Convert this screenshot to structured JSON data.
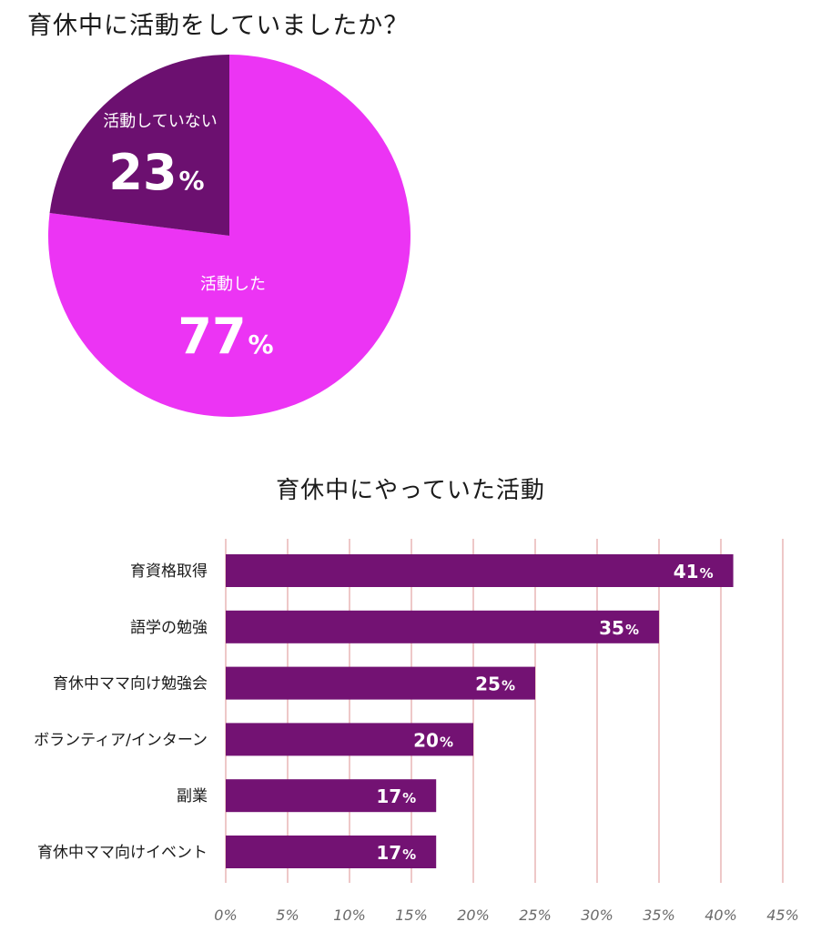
{
  "chart_data": [
    {
      "type": "pie",
      "title": "育休中に活動をしていましたか？",
      "slices": [
        {
          "label": "活動した",
          "value": 77,
          "display": "77",
          "unit": "%",
          "color": "#ec34f4"
        },
        {
          "label": "活動していない",
          "value": 23,
          "display": "23",
          "unit": "%",
          "color": "#6c1070"
        }
      ],
      "start": "12 o'clock",
      "direction": "clockwise"
    },
    {
      "type": "bar",
      "orientation": "horizontal",
      "title": "育休中にやっていた活動",
      "categories": [
        "育資格取得",
        "語学の勉強",
        "育休中ママ向け勉強会",
        "ボランティア/インターン",
        "副業",
        "育休中ママ向けイベント"
      ],
      "values": [
        41,
        35,
        25,
        20,
        17,
        17
      ],
      "value_unit": "%",
      "bar_color": "#731273",
      "xlim": [
        0,
        45
      ],
      "xticks": [
        "0%",
        "5%",
        "10%",
        "15%",
        "20%",
        "25%",
        "30%",
        "35%",
        "40%",
        "45%"
      ],
      "grid": true,
      "grid_color": "#e8b6b6"
    }
  ]
}
